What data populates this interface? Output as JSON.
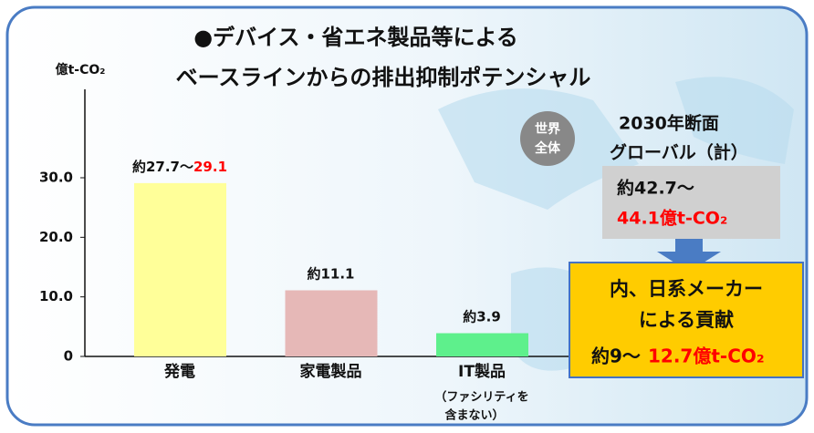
{
  "chart_data": {
    "type": "bar",
    "title": [
      "●デバイス・省エネ製品等による",
      "ベースラインからの排出抑制ポテンシャル"
    ],
    "y_axis_label": "億t-CO₂",
    "categories": [
      "発電",
      "家電製品",
      "IT製品"
    ],
    "category_notes": [
      null,
      null,
      [
        "（ファシリティを",
        "含まない）"
      ]
    ],
    "values": [
      29.1,
      11.1,
      3.9
    ],
    "value_labels": [
      [
        "約27.7〜",
        "29.1"
      ],
      [
        "約11.1"
      ],
      [
        "約3.9"
      ]
    ],
    "colors": [
      "#ffff99",
      "#e6b8b7",
      "#5ef08c"
    ],
    "highlight_color": "#ff0000",
    "ylim": [
      0,
      45
    ],
    "yticks": [
      0,
      {
        "value": 10,
        "label": "10.0"
      },
      {
        "value": 20,
        "label": "20.0"
      },
      {
        "value": 30,
        "label": "30.0"
      }
    ],
    "grid": false,
    "annotations": {
      "world": [
        "世界",
        "全体"
      ],
      "global_heading": [
        "2030年断面",
        "グローバル（計）"
      ],
      "global_total": [
        "約42.7〜",
        "44.1億t-CO₂"
      ],
      "japan_share": [
        "内、日系メーカー",
        "による貢献"
      ],
      "japan_total": [
        "約9〜",
        "12.7億t-CO₂"
      ]
    }
  }
}
